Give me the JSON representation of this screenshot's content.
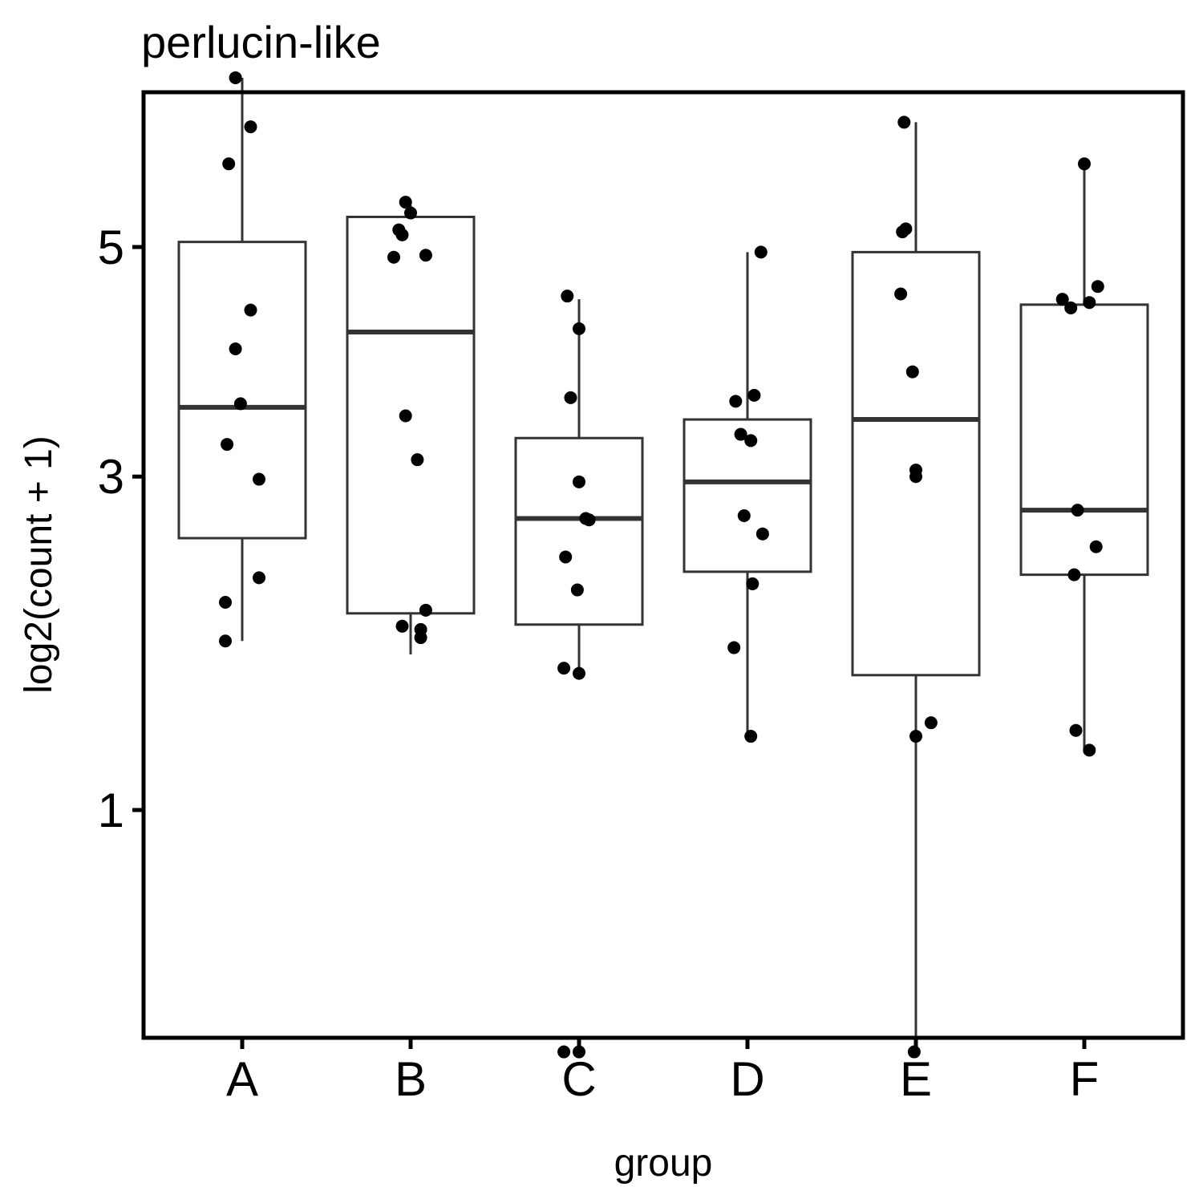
{
  "chart_data": {
    "type": "boxplot",
    "title": "perlucin-like",
    "xlabel": "group",
    "ylabel": "log2(count + 1)",
    "y_scale": "sqrt",
    "ylim": [
      0.12,
      7.0
    ],
    "yticks": [
      1,
      3,
      5
    ],
    "categories": [
      "A",
      "B",
      "C",
      "D",
      "E",
      "F"
    ],
    "boxes": [
      {
        "group": "A",
        "whisker_low": 1.88,
        "q1": 2.55,
        "median": 3.55,
        "q3": 5.05,
        "whisker_high": 6.8
      },
      {
        "group": "B",
        "whisker_low": 1.8,
        "q1": 2.05,
        "median": 4.2,
        "q3": 5.3,
        "whisker_high": 5.42
      },
      {
        "group": "C",
        "whisker_low": 1.7,
        "q1": 1.98,
        "median": 2.69,
        "q3": 3.3,
        "whisker_high": 4.5
      },
      {
        "group": "D",
        "whisker_low": 1.35,
        "q1": 2.32,
        "median": 2.96,
        "q3": 3.45,
        "whisker_high": 4.95
      },
      {
        "group": "E",
        "whisker_low": 0.22,
        "q1": 1.68,
        "median": 3.45,
        "q3": 4.95,
        "whisker_high": 6.3
      },
      {
        "group": "F",
        "whisker_low": 1.29,
        "q1": 2.3,
        "median": 2.75,
        "q3": 4.45,
        "whisker_high": 5.85
      }
    ],
    "points": [
      {
        "group": "A",
        "dx": -0.04,
        "y": 6.8
      },
      {
        "group": "A",
        "dx": 0.05,
        "y": 6.25
      },
      {
        "group": "A",
        "dx": -0.08,
        "y": 5.85
      },
      {
        "group": "A",
        "dx": 0.05,
        "y": 4.4
      },
      {
        "group": "A",
        "dx": -0.04,
        "y": 4.05
      },
      {
        "group": "A",
        "dx": -0.01,
        "y": 3.58
      },
      {
        "group": "A",
        "dx": -0.09,
        "y": 3.25
      },
      {
        "group": "A",
        "dx": 0.1,
        "y": 2.98
      },
      {
        "group": "A",
        "dx": 0.1,
        "y": 2.28
      },
      {
        "group": "A",
        "dx": -0.1,
        "y": 2.12
      },
      {
        "group": "A",
        "dx": -0.1,
        "y": 1.88
      },
      {
        "group": "B",
        "dx": -0.03,
        "y": 5.45
      },
      {
        "group": "B",
        "dx": 0.0,
        "y": 5.34
      },
      {
        "group": "B",
        "dx": -0.07,
        "y": 5.17
      },
      {
        "group": "B",
        "dx": -0.05,
        "y": 5.12
      },
      {
        "group": "B",
        "dx": -0.1,
        "y": 4.9
      },
      {
        "group": "B",
        "dx": 0.09,
        "y": 4.92
      },
      {
        "group": "B",
        "dx": -0.03,
        "y": 3.48
      },
      {
        "group": "B",
        "dx": 0.04,
        "y": 3.13
      },
      {
        "group": "B",
        "dx": 0.09,
        "y": 2.07
      },
      {
        "group": "B",
        "dx": -0.05,
        "y": 1.97
      },
      {
        "group": "B",
        "dx": 0.06,
        "y": 1.95
      },
      {
        "group": "B",
        "dx": 0.06,
        "y": 1.9
      },
      {
        "group": "C",
        "dx": -0.07,
        "y": 4.53
      },
      {
        "group": "C",
        "dx": 0.0,
        "y": 4.23
      },
      {
        "group": "C",
        "dx": -0.05,
        "y": 3.63
      },
      {
        "group": "C",
        "dx": 0.0,
        "y": 2.96
      },
      {
        "group": "C",
        "dx": 0.04,
        "y": 2.69
      },
      {
        "group": "C",
        "dx": 0.06,
        "y": 2.68
      },
      {
        "group": "C",
        "dx": -0.08,
        "y": 2.42
      },
      {
        "group": "C",
        "dx": -0.01,
        "y": 2.2
      },
      {
        "group": "C",
        "dx": -0.09,
        "y": 1.72
      },
      {
        "group": "C",
        "dx": 0.0,
        "y": 1.69
      },
      {
        "group": "C",
        "dx": -0.09,
        "y": 0.22
      },
      {
        "group": "C",
        "dx": 0.0,
        "y": 0.22
      },
      {
        "group": "D",
        "dx": 0.08,
        "y": 4.95
      },
      {
        "group": "D",
        "dx": 0.04,
        "y": 3.65
      },
      {
        "group": "D",
        "dx": -0.07,
        "y": 3.6
      },
      {
        "group": "D",
        "dx": -0.04,
        "y": 3.33
      },
      {
        "group": "D",
        "dx": 0.02,
        "y": 3.28
      },
      {
        "group": "D",
        "dx": -0.02,
        "y": 2.71
      },
      {
        "group": "D",
        "dx": 0.09,
        "y": 2.58
      },
      {
        "group": "D",
        "dx": 0.03,
        "y": 2.24
      },
      {
        "group": "D",
        "dx": -0.08,
        "y": 1.84
      },
      {
        "group": "D",
        "dx": 0.02,
        "y": 1.35
      },
      {
        "group": "E",
        "dx": -0.07,
        "y": 6.3
      },
      {
        "group": "E",
        "dx": -0.06,
        "y": 5.18
      },
      {
        "group": "E",
        "dx": -0.08,
        "y": 5.15
      },
      {
        "group": "E",
        "dx": -0.09,
        "y": 4.55
      },
      {
        "group": "E",
        "dx": -0.02,
        "y": 3.85
      },
      {
        "group": "E",
        "dx": 0.0,
        "y": 3.05
      },
      {
        "group": "E",
        "dx": 0.0,
        "y": 3.0
      },
      {
        "group": "E",
        "dx": 0.09,
        "y": 1.42
      },
      {
        "group": "E",
        "dx": 0.0,
        "y": 1.35
      },
      {
        "group": "E",
        "dx": -0.01,
        "y": 0.22
      },
      {
        "group": "F",
        "dx": 0.0,
        "y": 5.85
      },
      {
        "group": "F",
        "dx": 0.08,
        "y": 4.62
      },
      {
        "group": "F",
        "dx": -0.13,
        "y": 4.5
      },
      {
        "group": "F",
        "dx": 0.03,
        "y": 4.47
      },
      {
        "group": "F",
        "dx": -0.08,
        "y": 4.42
      },
      {
        "group": "F",
        "dx": -0.04,
        "y": 2.75
      },
      {
        "group": "F",
        "dx": 0.07,
        "y": 2.49
      },
      {
        "group": "F",
        "dx": -0.06,
        "y": 2.3
      },
      {
        "group": "F",
        "dx": -0.05,
        "y": 1.38
      },
      {
        "group": "F",
        "dx": 0.03,
        "y": 1.28
      }
    ]
  }
}
